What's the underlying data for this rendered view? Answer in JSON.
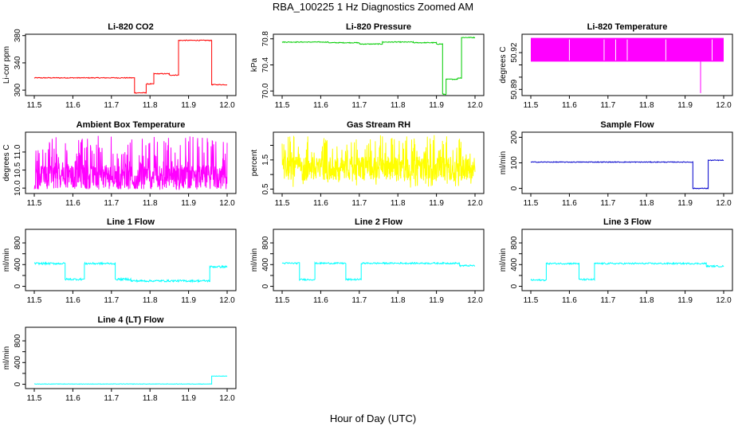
{
  "figure": {
    "title": "RBA_100225  1 Hz Diagnostics Zoomed AM",
    "xlabel": "Hour of Day (UTC)"
  },
  "chart_data": [
    {
      "type": "line",
      "title": "Li-820 CO2",
      "ylabel": "Li-cor ppm",
      "color": "#ff0000",
      "xlim": [
        11.5,
        12.0
      ],
      "ylim": [
        292,
        382
      ],
      "xticks": [
        "11.5",
        "11.6",
        "11.7",
        "11.8",
        "11.9",
        "12.0"
      ],
      "yticks": [
        300,
        340,
        380
      ],
      "ytick_labels": [
        "300",
        "340",
        "380"
      ],
      "noise": 0.6,
      "x": [
        11.5,
        11.76,
        11.76,
        11.79,
        11.79,
        11.81,
        11.81,
        11.85,
        11.85,
        11.874,
        11.874,
        11.96,
        11.96,
        12.0
      ],
      "y": [
        318,
        318,
        296,
        296,
        309,
        309,
        324,
        324,
        322,
        322,
        373,
        373,
        308,
        308
      ]
    },
    {
      "type": "line",
      "title": "Li-820 Pressure",
      "ylabel": "kPa",
      "color": "#00cc00",
      "xlim": [
        11.5,
        12.0
      ],
      "ylim": [
        69.93,
        70.87
      ],
      "xticks": [
        "11.5",
        "11.6",
        "11.7",
        "11.8",
        "11.9",
        "12.0"
      ],
      "yticks": [
        70.0,
        70.4,
        70.8
      ],
      "ytick_labels": [
        "70.0",
        "70.4",
        "70.8"
      ],
      "noise": 0.006,
      "x": [
        11.5,
        11.62,
        11.62,
        11.7,
        11.7,
        11.76,
        11.76,
        11.84,
        11.84,
        11.9,
        11.9,
        11.916,
        11.916,
        11.925,
        11.925,
        11.955,
        11.955,
        11.965,
        11.965,
        12.0
      ],
      "y": [
        70.75,
        70.75,
        70.74,
        70.74,
        70.72,
        70.72,
        70.75,
        70.75,
        70.74,
        70.74,
        70.72,
        70.72,
        69.95,
        69.95,
        70.18,
        70.18,
        70.2,
        70.2,
        70.82,
        70.82
      ]
    },
    {
      "type": "line",
      "title": "Li-820 Temperature",
      "ylabel": "degrees C",
      "color": "#ff00ff",
      "xlim": [
        11.5,
        12.0
      ],
      "ylim": [
        50.885,
        50.935
      ],
      "xticks": [
        "11.5",
        "11.6",
        "11.7",
        "11.8",
        "11.9",
        "12.0"
      ],
      "yticks": [
        50.89,
        50.9,
        50.91,
        50.92
      ],
      "ytick_labels": [
        "50.89",
        "",
        "",
        "50.92"
      ],
      "band": [
        50.913,
        50.932
      ],
      "x": [
        11.5,
        11.94,
        11.94,
        11.94,
        12.0
      ],
      "y": [
        50.913,
        50.913,
        50.887,
        50.913,
        50.913
      ]
    },
    {
      "type": "line",
      "title": "Ambient Box Temperature",
      "ylabel": "degrees C",
      "color": "#ff00ff",
      "xlim": [
        11.5,
        12.0
      ],
      "ylim": [
        9.85,
        11.55
      ],
      "xticks": [
        "11.5",
        "11.6",
        "11.7",
        "11.8",
        "11.9",
        "12.0"
      ],
      "yticks": [
        10.0,
        10.5,
        11.0
      ],
      "ytick_labels": [
        "10.0",
        "10.5",
        "11.0"
      ],
      "noise_range": [
        9.95,
        11.45
      ],
      "x": [
        11.5,
        12.0
      ],
      "y": [
        10.3,
        10.3
      ]
    },
    {
      "type": "line",
      "title": "Gas Stream RH",
      "ylabel": "percent",
      "color": "#ffff00",
      "xlim": [
        11.5,
        12.0
      ],
      "ylim": [
        0.35,
        2.45
      ],
      "xticks": [
        "11.5",
        "11.6",
        "11.7",
        "11.8",
        "11.9",
        "12.0"
      ],
      "yticks": [
        0.5,
        1.0,
        1.5,
        2.0
      ],
      "ytick_labels": [
        "0.5",
        "",
        "1.5",
        ""
      ],
      "noise_range": [
        0.55,
        2.35
      ],
      "x": [
        11.5,
        12.0
      ],
      "y": [
        1.2,
        1.2
      ]
    },
    {
      "type": "line",
      "title": "Sample Flow",
      "ylabel": "ml/min",
      "color": "#0000cc",
      "xlim": [
        11.5,
        12.0
      ],
      "ylim": [
        -20,
        220
      ],
      "xticks": [
        "11.5",
        "11.6",
        "11.7",
        "11.8",
        "11.9",
        "12.0"
      ],
      "yticks": [
        0,
        100,
        200
      ],
      "ytick_labels": [
        "0",
        "100",
        "200"
      ],
      "noise": 1.5,
      "x": [
        11.5,
        11.92,
        11.92,
        11.96,
        11.96,
        12.0
      ],
      "y": [
        103,
        103,
        0,
        0,
        110,
        110
      ]
    },
    {
      "type": "line",
      "title": "Line 1 Flow",
      "ylabel": "ml/min",
      "color": "#00ffff",
      "xlim": [
        11.5,
        12.0
      ],
      "ylim": [
        -80,
        1050
      ],
      "xticks": [
        "11.5",
        "11.6",
        "11.7",
        "11.8",
        "11.9",
        "12.0"
      ],
      "yticks": [
        0,
        200,
        400,
        600,
        800
      ],
      "ytick_labels": [
        "0",
        "",
        "400",
        "",
        "800"
      ],
      "noise": 18,
      "x": [
        11.5,
        11.58,
        11.58,
        11.63,
        11.63,
        11.71,
        11.71,
        11.75,
        11.75,
        11.955,
        11.955,
        12.0
      ],
      "y": [
        420,
        420,
        130,
        130,
        420,
        420,
        130,
        130,
        100,
        100,
        360,
        360
      ]
    },
    {
      "type": "line",
      "title": "Line 2 Flow",
      "ylabel": "ml/min",
      "color": "#00ffff",
      "xlim": [
        11.5,
        12.0
      ],
      "ylim": [
        -80,
        1050
      ],
      "xticks": [
        "11.5",
        "11.6",
        "11.7",
        "11.8",
        "11.9",
        "12.0"
      ],
      "yticks": [
        0,
        200,
        400,
        600,
        800
      ],
      "ytick_labels": [
        "0",
        "",
        "400",
        "",
        "800"
      ],
      "noise": 14,
      "x": [
        11.5,
        11.545,
        11.545,
        11.585,
        11.585,
        11.665,
        11.665,
        11.705,
        11.705,
        11.96,
        11.96,
        12.0
      ],
      "y": [
        425,
        425,
        125,
        125,
        425,
        425,
        125,
        125,
        425,
        425,
        380,
        380
      ]
    },
    {
      "type": "line",
      "title": "Line 3 Flow",
      "ylabel": "ml/min",
      "color": "#00ffff",
      "xlim": [
        11.5,
        12.0
      ],
      "ylim": [
        -80,
        1050
      ],
      "xticks": [
        "11.5",
        "11.6",
        "11.7",
        "11.8",
        "11.9",
        "12.0"
      ],
      "yticks": [
        0,
        200,
        400,
        600,
        800
      ],
      "ytick_labels": [
        "0",
        "",
        "400",
        "",
        "800"
      ],
      "noise": 14,
      "x": [
        11.5,
        11.54,
        11.54,
        11.625,
        11.625,
        11.665,
        11.665,
        11.955,
        11.955,
        12.0
      ],
      "y": [
        115,
        115,
        420,
        420,
        125,
        125,
        420,
        420,
        370,
        370
      ]
    },
    {
      "type": "line",
      "title": "Line 4 (LT) Flow",
      "ylabel": "ml/min",
      "color": "#00ffff",
      "xlim": [
        11.5,
        12.0
      ],
      "ylim": [
        -80,
        1050
      ],
      "xticks": [
        "11.5",
        "11.6",
        "11.7",
        "11.8",
        "11.9",
        "12.0"
      ],
      "yticks": [
        0,
        200,
        400,
        600,
        800
      ],
      "ytick_labels": [
        "0",
        "",
        "400",
        "",
        "800"
      ],
      "noise": 4,
      "x": [
        11.5,
        11.96,
        11.96,
        12.0
      ],
      "y": [
        5,
        5,
        150,
        150
      ]
    }
  ]
}
